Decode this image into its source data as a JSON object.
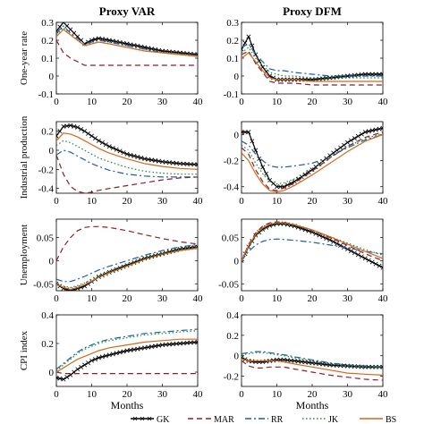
{
  "figure": {
    "column_titles": [
      "Proxy VAR",
      "Proxy DFM"
    ],
    "xlabel": "Months",
    "legend": [
      "GK",
      "MAR",
      "RR",
      "JK",
      "BS"
    ]
  },
  "series_styles": {
    "GK": {
      "color": "#000000",
      "dash": "",
      "marker": "x"
    },
    "MAR": {
      "color": "#8b1e2b",
      "dash": "6,4",
      "marker": ""
    },
    "RR": {
      "color": "#1f5fa0",
      "dash": "7,3,2,3",
      "marker": ""
    },
    "JK": {
      "color": "#1b8a3a",
      "dash": "1.5,2.5",
      "marker": ""
    },
    "BS": {
      "color": "#d2691e",
      "dash": "",
      "marker": ""
    }
  },
  "chart_data": [
    {
      "type": "line",
      "panel": "Proxy VAR / One-year rate",
      "title": "Proxy VAR",
      "ylabel": "One-year rate",
      "xlabel": "",
      "xlim": [
        0,
        40
      ],
      "ylim": [
        -0.1,
        0.3
      ],
      "yticks": [
        -0.1,
        0,
        0.1,
        0.2,
        0.3
      ],
      "xticks": [
        0,
        10,
        20,
        30,
        40
      ],
      "x": [
        0,
        2,
        4,
        6,
        8,
        10,
        12,
        15,
        20,
        25,
        30,
        35,
        40
      ],
      "series": [
        {
          "name": "GK",
          "values": [
            0.25,
            0.3,
            0.26,
            0.22,
            0.18,
            0.2,
            0.21,
            0.2,
            0.18,
            0.16,
            0.14,
            0.13,
            0.12
          ]
        },
        {
          "name": "MAR",
          "values": [
            0.2,
            0.13,
            0.1,
            0.08,
            0.06,
            0.06,
            0.06,
            0.06,
            0.06,
            0.06,
            0.06,
            0.06,
            0.06
          ]
        },
        {
          "name": "RR",
          "values": [
            0.24,
            0.28,
            0.24,
            0.21,
            0.18,
            0.19,
            0.2,
            0.19,
            0.17,
            0.15,
            0.13,
            0.12,
            0.11
          ]
        },
        {
          "name": "JK",
          "values": [
            0.23,
            0.27,
            0.23,
            0.2,
            0.17,
            0.18,
            0.19,
            0.18,
            0.16,
            0.14,
            0.13,
            0.12,
            0.11
          ]
        },
        {
          "name": "BS",
          "values": [
            0.22,
            0.26,
            0.23,
            0.2,
            0.17,
            0.18,
            0.19,
            0.18,
            0.16,
            0.14,
            0.13,
            0.12,
            0.11
          ]
        }
      ]
    },
    {
      "type": "line",
      "panel": "Proxy DFM / One-year rate",
      "title": "Proxy DFM",
      "ylabel": "",
      "xlabel": "",
      "xlim": [
        0,
        40
      ],
      "ylim": [
        -0.1,
        0.3
      ],
      "yticks": [
        -0.1,
        0,
        0.1,
        0.2,
        0.3
      ],
      "xticks": [
        0,
        10,
        20,
        30,
        40
      ],
      "x": [
        0,
        2,
        4,
        6,
        8,
        10,
        12,
        15,
        20,
        25,
        30,
        35,
        40
      ],
      "series": [
        {
          "name": "GK",
          "values": [
            0.15,
            0.22,
            0.12,
            0.05,
            0.0,
            -0.02,
            -0.02,
            -0.02,
            -0.02,
            -0.01,
            0.0,
            0.01,
            0.01
          ]
        },
        {
          "name": "MAR",
          "values": [
            0.12,
            0.14,
            0.07,
            0.02,
            -0.03,
            -0.04,
            -0.04,
            -0.04,
            -0.05,
            -0.05,
            -0.05,
            -0.05,
            -0.05
          ]
        },
        {
          "name": "RR",
          "values": [
            0.16,
            0.18,
            0.12,
            0.08,
            0.04,
            0.03,
            0.03,
            0.02,
            0.01,
            0.0,
            0.0,
            0.0,
            0.0
          ]
        },
        {
          "name": "JK",
          "values": [
            0.13,
            0.16,
            0.1,
            0.06,
            0.02,
            0.01,
            0.0,
            0.0,
            -0.01,
            -0.01,
            -0.01,
            -0.01,
            -0.01
          ]
        },
        {
          "name": "BS",
          "values": [
            0.1,
            0.13,
            0.08,
            0.03,
            -0.01,
            -0.02,
            -0.02,
            -0.02,
            -0.03,
            -0.03,
            -0.03,
            -0.03,
            -0.03
          ]
        }
      ]
    },
    {
      "type": "line",
      "panel": "Proxy VAR / Industrial production",
      "title": "",
      "ylabel": "Industrial production",
      "xlabel": "",
      "xlim": [
        0,
        40
      ],
      "ylim": [
        -0.45,
        0.3
      ],
      "yticks": [
        -0.4,
        -0.2,
        0,
        0.2
      ],
      "xticks": [
        0,
        10,
        20,
        30,
        40
      ],
      "x": [
        0,
        2,
        4,
        6,
        8,
        10,
        12,
        15,
        20,
        25,
        30,
        35,
        40
      ],
      "series": [
        {
          "name": "GK",
          "values": [
            0.15,
            0.25,
            0.26,
            0.24,
            0.2,
            0.15,
            0.1,
            0.04,
            -0.04,
            -0.09,
            -0.12,
            -0.14,
            -0.15
          ]
        },
        {
          "name": "MAR",
          "values": [
            -0.05,
            -0.25,
            -0.38,
            -0.43,
            -0.45,
            -0.44,
            -0.42,
            -0.4,
            -0.37,
            -0.34,
            -0.31,
            -0.29,
            -0.28
          ]
        },
        {
          "name": "RR",
          "values": [
            -0.05,
            0.0,
            -0.02,
            -0.06,
            -0.1,
            -0.14,
            -0.17,
            -0.21,
            -0.25,
            -0.27,
            -0.28,
            -0.28,
            -0.28
          ]
        },
        {
          "name": "JK",
          "values": [
            0.05,
            0.1,
            0.08,
            0.04,
            0.0,
            -0.04,
            -0.08,
            -0.12,
            -0.18,
            -0.22,
            -0.24,
            -0.25,
            -0.25
          ]
        },
        {
          "name": "BS",
          "values": [
            0.1,
            0.18,
            0.17,
            0.14,
            0.1,
            0.06,
            0.02,
            -0.03,
            -0.09,
            -0.14,
            -0.17,
            -0.19,
            -0.2
          ]
        }
      ]
    },
    {
      "type": "line",
      "panel": "Proxy DFM / Industrial production",
      "title": "",
      "ylabel": "",
      "xlabel": "",
      "xlim": [
        0,
        40
      ],
      "ylim": [
        -0.45,
        0.1
      ],
      "yticks": [
        -0.4,
        -0.2,
        0
      ],
      "xticks": [
        0,
        10,
        20,
        30,
        40
      ],
      "x": [
        0,
        2,
        4,
        6,
        8,
        10,
        12,
        15,
        20,
        25,
        30,
        35,
        40
      ],
      "series": [
        {
          "name": "GK",
          "values": [
            0.02,
            0.02,
            -0.12,
            -0.25,
            -0.35,
            -0.4,
            -0.4,
            -0.36,
            -0.27,
            -0.16,
            -0.06,
            0.02,
            0.05
          ]
        },
        {
          "name": "MAR",
          "values": [
            -0.1,
            -0.15,
            -0.27,
            -0.36,
            -0.42,
            -0.43,
            -0.41,
            -0.37,
            -0.28,
            -0.18,
            -0.09,
            -0.02,
            0.02
          ]
        },
        {
          "name": "RR",
          "values": [
            -0.05,
            -0.08,
            -0.15,
            -0.2,
            -0.24,
            -0.25,
            -0.25,
            -0.24,
            -0.22,
            -0.17,
            -0.1,
            -0.04,
            0.0
          ]
        },
        {
          "name": "JK",
          "values": [
            -0.08,
            -0.12,
            -0.22,
            -0.3,
            -0.36,
            -0.38,
            -0.37,
            -0.34,
            -0.26,
            -0.17,
            -0.09,
            -0.03,
            0.01
          ]
        },
        {
          "name": "BS",
          "values": [
            -0.14,
            -0.2,
            -0.3,
            -0.38,
            -0.43,
            -0.44,
            -0.43,
            -0.39,
            -0.31,
            -0.22,
            -0.13,
            -0.05,
            0.0
          ]
        }
      ]
    },
    {
      "type": "line",
      "panel": "Proxy VAR / Unemployment",
      "title": "",
      "ylabel": "Unemployment",
      "xlabel": "",
      "xlim": [
        0,
        40
      ],
      "ylim": [
        -0.065,
        0.09
      ],
      "yticks": [
        -0.05,
        0,
        0.05
      ],
      "xticks": [
        0,
        10,
        20,
        30,
        40
      ],
      "x": [
        0,
        2,
        4,
        6,
        8,
        10,
        12,
        15,
        20,
        25,
        30,
        35,
        40
      ],
      "series": [
        {
          "name": "GK",
          "values": [
            -0.05,
            -0.06,
            -0.065,
            -0.06,
            -0.055,
            -0.045,
            -0.035,
            -0.025,
            -0.01,
            0.005,
            0.015,
            0.025,
            0.03
          ]
        },
        {
          "name": "MAR",
          "values": [
            0.0,
            0.03,
            0.05,
            0.065,
            0.072,
            0.074,
            0.074,
            0.072,
            0.065,
            0.056,
            0.048,
            0.041,
            0.036
          ]
        },
        {
          "name": "RR",
          "values": [
            -0.04,
            -0.045,
            -0.045,
            -0.04,
            -0.034,
            -0.027,
            -0.02,
            -0.012,
            0.0,
            0.012,
            0.022,
            0.03,
            0.035
          ]
        },
        {
          "name": "JK",
          "values": [
            -0.05,
            -0.055,
            -0.058,
            -0.054,
            -0.048,
            -0.04,
            -0.032,
            -0.022,
            -0.008,
            0.006,
            0.017,
            0.025,
            0.03
          ]
        },
        {
          "name": "BS",
          "values": [
            -0.05,
            -0.058,
            -0.062,
            -0.058,
            -0.052,
            -0.044,
            -0.036,
            -0.026,
            -0.012,
            0.003,
            0.014,
            0.022,
            0.027
          ]
        }
      ]
    },
    {
      "type": "line",
      "panel": "Proxy DFM / Unemployment",
      "title": "",
      "ylabel": "",
      "xlabel": "",
      "xlim": [
        0,
        40
      ],
      "ylim": [
        -0.065,
        0.09
      ],
      "yticks": [
        -0.05,
        0,
        0.05
      ],
      "xticks": [
        0,
        10,
        20,
        30,
        40
      ],
      "x": [
        0,
        2,
        4,
        6,
        8,
        10,
        12,
        15,
        20,
        25,
        30,
        35,
        40
      ],
      "series": [
        {
          "name": "GK",
          "values": [
            0.0,
            0.03,
            0.055,
            0.068,
            0.076,
            0.08,
            0.08,
            0.075,
            0.062,
            0.045,
            0.025,
            0.005,
            -0.015
          ]
        },
        {
          "name": "MAR",
          "values": [
            0.0,
            0.035,
            0.06,
            0.075,
            0.082,
            0.084,
            0.083,
            0.078,
            0.066,
            0.05,
            0.033,
            0.015,
            0.0
          ]
        },
        {
          "name": "RR",
          "values": [
            0.0,
            0.02,
            0.034,
            0.042,
            0.046,
            0.047,
            0.046,
            0.044,
            0.04,
            0.034,
            0.028,
            0.02,
            0.015
          ]
        },
        {
          "name": "JK",
          "values": [
            0.0,
            0.028,
            0.052,
            0.066,
            0.074,
            0.078,
            0.079,
            0.076,
            0.066,
            0.052,
            0.038,
            0.024,
            0.012
          ]
        },
        {
          "name": "BS",
          "values": [
            0.0,
            0.032,
            0.057,
            0.071,
            0.079,
            0.082,
            0.082,
            0.078,
            0.067,
            0.052,
            0.036,
            0.02,
            0.005
          ]
        }
      ]
    },
    {
      "type": "line",
      "panel": "Proxy VAR / CPI index",
      "title": "",
      "ylabel": "CPI index",
      "xlabel": "Months",
      "xlim": [
        0,
        40
      ],
      "ylim": [
        -0.1,
        0.4
      ],
      "yticks": [
        0,
        0.2,
        0.4
      ],
      "xticks": [
        0,
        10,
        20,
        30,
        40
      ],
      "x": [
        0,
        2,
        4,
        6,
        8,
        10,
        12,
        15,
        20,
        25,
        30,
        35,
        40
      ],
      "series": [
        {
          "name": "GK",
          "values": [
            -0.04,
            -0.05,
            -0.02,
            0.02,
            0.05,
            0.08,
            0.1,
            0.12,
            0.15,
            0.17,
            0.19,
            0.2,
            0.21
          ]
        },
        {
          "name": "MAR",
          "values": [
            0.0,
            -0.01,
            -0.01,
            -0.01,
            -0.01,
            -0.01,
            -0.01,
            -0.01,
            -0.01,
            -0.01,
            -0.01,
            -0.01,
            -0.01
          ]
        },
        {
          "name": "RR",
          "values": [
            0.02,
            0.06,
            0.1,
            0.14,
            0.17,
            0.19,
            0.21,
            0.23,
            0.25,
            0.27,
            0.28,
            0.29,
            0.3
          ]
        },
        {
          "name": "JK",
          "values": [
            0.01,
            0.05,
            0.09,
            0.13,
            0.16,
            0.18,
            0.2,
            0.22,
            0.24,
            0.26,
            0.27,
            0.28,
            0.29
          ]
        },
        {
          "name": "BS",
          "values": [
            0.0,
            0.03,
            0.06,
            0.09,
            0.11,
            0.13,
            0.15,
            0.17,
            0.19,
            0.21,
            0.22,
            0.23,
            0.23
          ]
        }
      ]
    },
    {
      "type": "line",
      "panel": "Proxy DFM / CPI index",
      "title": "",
      "ylabel": "",
      "xlabel": "Months",
      "xlim": [
        0,
        40
      ],
      "ylim": [
        -0.3,
        0.4
      ],
      "yticks": [
        -0.2,
        0,
        0.2,
        0.4
      ],
      "xticks": [
        0,
        10,
        20,
        30,
        40
      ],
      "x": [
        0,
        2,
        4,
        6,
        8,
        10,
        12,
        15,
        20,
        25,
        30,
        35,
        40
      ],
      "series": [
        {
          "name": "GK",
          "values": [
            -0.02,
            -0.05,
            -0.06,
            -0.06,
            -0.05,
            -0.04,
            -0.04,
            -0.05,
            -0.07,
            -0.09,
            -0.1,
            -0.11,
            -0.11
          ]
        },
        {
          "name": "MAR",
          "values": [
            -0.05,
            -0.1,
            -0.12,
            -0.12,
            -0.11,
            -0.11,
            -0.11,
            -0.13,
            -0.16,
            -0.19,
            -0.21,
            -0.23,
            -0.24
          ]
        },
        {
          "name": "RR",
          "values": [
            0.02,
            0.03,
            0.04,
            0.04,
            0.03,
            0.02,
            0.01,
            -0.01,
            -0.04,
            -0.07,
            -0.09,
            -0.1,
            -0.11
          ]
        },
        {
          "name": "JK",
          "values": [
            0.01,
            0.02,
            0.03,
            0.03,
            0.02,
            0.01,
            0.0,
            -0.02,
            -0.05,
            -0.08,
            -0.1,
            -0.11,
            -0.12
          ]
        },
        {
          "name": "BS",
          "values": [
            -0.03,
            -0.05,
            -0.05,
            -0.05,
            -0.05,
            -0.05,
            -0.06,
            -0.08,
            -0.11,
            -0.14,
            -0.17,
            -0.18,
            -0.19
          ]
        }
      ]
    }
  ]
}
